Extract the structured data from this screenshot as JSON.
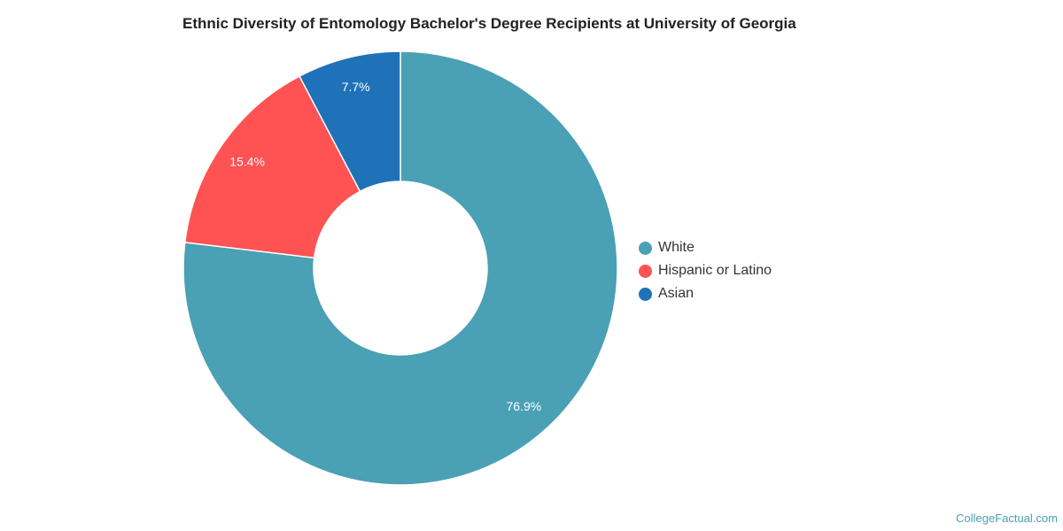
{
  "chart_data": {
    "type": "pie",
    "title": "Ethnic Diversity of Entomology Bachelor's Degree Recipients at University of Georgia",
    "donut": true,
    "start": "top",
    "direction": "clockwise",
    "slices": [
      {
        "name": "White",
        "value": 76.9,
        "label": "76.9%",
        "color": "#4aa0b5"
      },
      {
        "name": "Hispanic or Latino",
        "value": 15.4,
        "label": "15.4%",
        "color": "#ff5252"
      },
      {
        "name": "Asian",
        "value": 7.7,
        "label": "7.7%",
        "color": "#1f72b8"
      }
    ],
    "legend_position": "right"
  },
  "credit": "CollegeFactual.com"
}
